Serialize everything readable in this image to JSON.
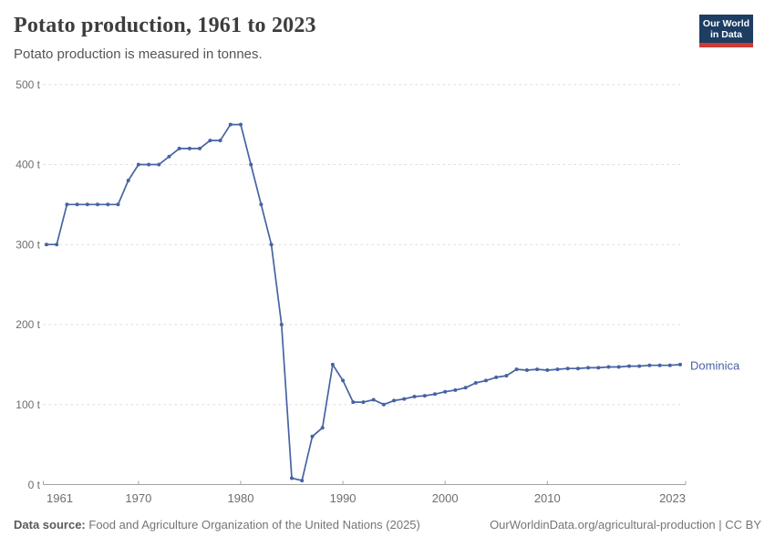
{
  "header": {
    "title": "Potato production, 1961 to 2023",
    "subtitle": "Potato production is measured in tonnes.",
    "logo": {
      "line1": "Our World",
      "line2": "in Data"
    }
  },
  "chart_data": {
    "type": "line",
    "title": "Potato production, 1961 to 2023",
    "ylabel": "",
    "xlabel": "",
    "unit": "t",
    "ylim": [
      0,
      500
    ],
    "yticks": [
      0,
      100,
      200,
      300,
      400,
      500
    ],
    "ytick_suffix": " t",
    "xticks": [
      1961,
      1970,
      1980,
      1990,
      2000,
      2010,
      2023
    ],
    "grid": "horizontal-dashed",
    "legend_position": "end-of-line",
    "x": [
      1961,
      1962,
      1963,
      1964,
      1965,
      1966,
      1967,
      1968,
      1969,
      1970,
      1971,
      1972,
      1973,
      1974,
      1975,
      1976,
      1977,
      1978,
      1979,
      1980,
      1981,
      1982,
      1983,
      1984,
      1985,
      1986,
      1987,
      1988,
      1989,
      1990,
      1991,
      1992,
      1993,
      1994,
      1995,
      1996,
      1997,
      1998,
      1999,
      2000,
      2001,
      2002,
      2003,
      2004,
      2005,
      2006,
      2007,
      2008,
      2009,
      2010,
      2011,
      2012,
      2013,
      2014,
      2015,
      2016,
      2017,
      2018,
      2019,
      2020,
      2021,
      2022,
      2023
    ],
    "series": [
      {
        "name": "Dominica",
        "color": "#4663a3",
        "values": [
          300,
          300,
          350,
          350,
          350,
          350,
          350,
          350,
          380,
          400,
          400,
          400,
          410,
          420,
          420,
          420,
          430,
          430,
          450,
          450,
          400,
          350,
          300,
          200,
          8,
          5,
          60,
          71,
          150,
          130,
          103,
          103,
          106,
          100,
          105,
          107,
          110,
          111,
          113,
          116,
          118,
          121,
          127,
          130,
          134,
          136,
          144,
          143,
          144,
          143,
          144,
          145,
          145,
          146,
          146,
          147,
          147,
          148,
          148,
          149,
          149,
          149,
          150
        ]
      }
    ]
  },
  "colors": {
    "series": "#4663a3",
    "gridline": "#dcdcdc",
    "axis": "#a3a3a3",
    "tick_label": "#6e6e6e",
    "title": "#3d3d3d",
    "subtitle": "#555555",
    "footer": "#757575",
    "logo_bg": "#1d3d63",
    "logo_red": "#cd3b34"
  },
  "footer": {
    "source_label": "Data source:",
    "source_text": "Food and Agriculture Organization of the United Nations (2025)",
    "right_text": "OurWorldinData.org/agricultural-production | CC BY"
  }
}
